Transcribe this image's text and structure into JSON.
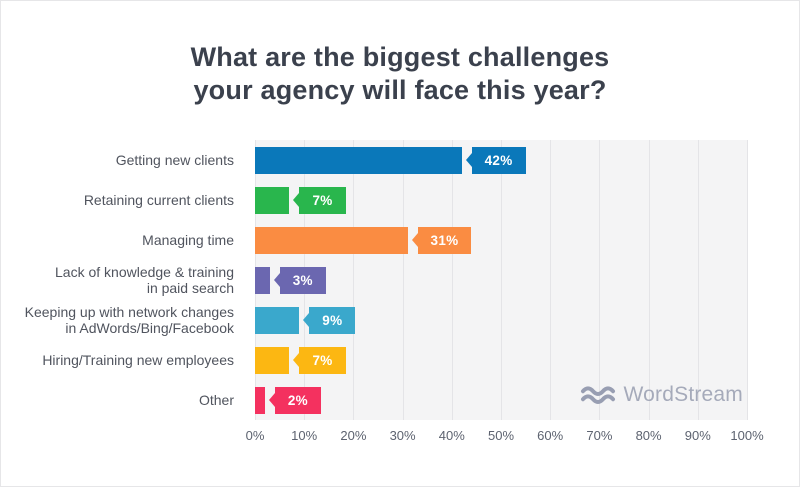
{
  "title": "What are the biggest challenges\nyour agency will face this year?",
  "chart_data": {
    "type": "bar",
    "orientation": "horizontal",
    "title": "What are the biggest challenges your agency will face this year?",
    "categories": [
      "Getting new clients",
      "Retaining current clients",
      "Managing time",
      "Lack of knowledge & training\nin paid search",
      "Keeping up with network changes\nin AdWords/Bing/Facebook",
      "Hiring/Training new employees",
      "Other"
    ],
    "values": [
      42,
      7,
      31,
      3,
      9,
      7,
      2
    ],
    "value_labels": [
      "42%",
      "7%",
      "31%",
      "3%",
      "9%",
      "7%",
      "2%"
    ],
    "bar_colors": [
      "#0a78ba",
      "#29b64d",
      "#fa8c42",
      "#6b67b0",
      "#3aa8cc",
      "#fcb712",
      "#f4315f"
    ],
    "x_ticks": [
      "0%",
      "10%",
      "20%",
      "30%",
      "40%",
      "50%",
      "60%",
      "70%",
      "80%",
      "90%",
      "100%"
    ],
    "xlim": [
      0,
      100
    ],
    "grid": "vertical-only",
    "legend": "none",
    "plot_background": "#f4f4f5",
    "gridline_color": "#e4e4e7"
  },
  "branding": {
    "logo_text": "WordStream",
    "logo_icon": "waves-icon",
    "logo_text_color": "#a5aaba",
    "logo_icon_color": "#989eb2"
  },
  "colors": {
    "title": "#3b414d",
    "category_label": "#50545e",
    "tick_label": "#5d6370",
    "page_background": "#ffffff"
  }
}
